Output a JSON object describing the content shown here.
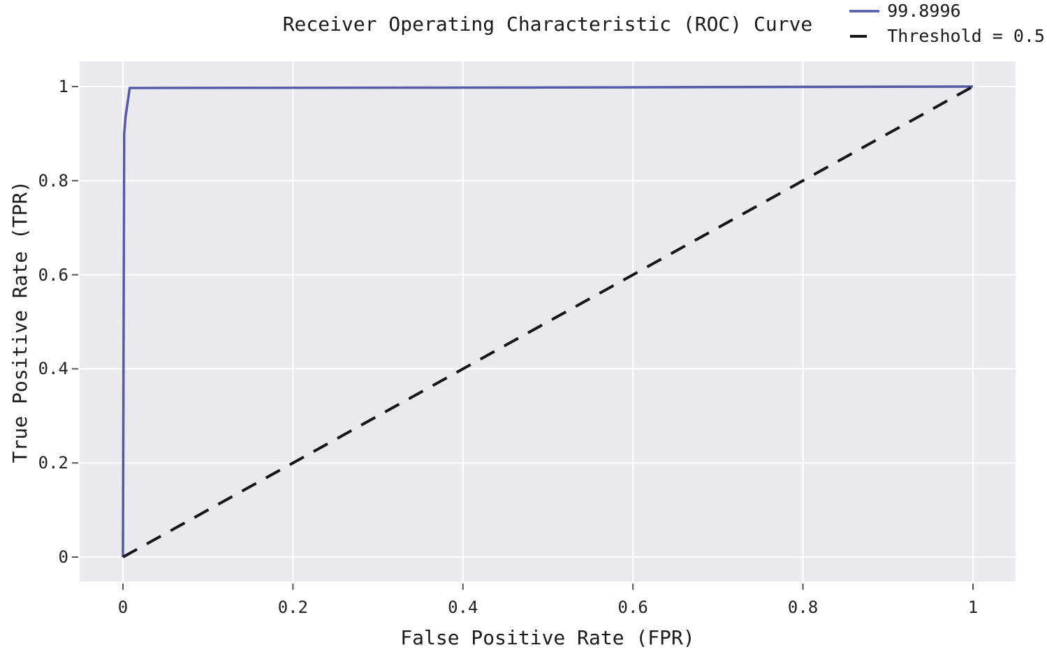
{
  "chart_data": {
    "type": "line",
    "title": "Receiver Operating Characteristic (ROC) Curve",
    "xlabel": "False Positive Rate (FPR)",
    "ylabel": "True Positive Rate (TPR)",
    "xlim": [
      -0.051,
      1.05
    ],
    "ylim": [
      -0.052,
      1.053
    ],
    "grid": true,
    "legend_position": "upper right, outside axes",
    "colors": {
      "plot_background": "#e9e9ee",
      "gridline": "#ffffff",
      "roc_line": "#5459a8",
      "threshold_line": "#161616",
      "tick_mark": "#555555",
      "text": "#1a1a1a"
    },
    "xticks": {
      "values": [
        0,
        0.2,
        0.4,
        0.6,
        0.8,
        1
      ],
      "labels": [
        "0",
        "0.2",
        "0.4",
        "0.6",
        "0.8",
        "1"
      ]
    },
    "yticks": {
      "values": [
        0,
        0.2,
        0.4,
        0.6,
        0.8,
        1
      ],
      "labels": [
        "0",
        "0.2",
        "0.4",
        "0.6",
        "0.8",
        "1"
      ]
    },
    "series": [
      {
        "name": "99.8996",
        "style": "solid",
        "color": "#5459a8",
        "line_width": 3.5,
        "points": [
          [
            0,
            0
          ],
          [
            0.0015,
            0.9
          ],
          [
            0.003,
            0.935
          ],
          [
            0.008,
            0.997
          ],
          [
            0.5,
            0.998
          ],
          [
            1,
            1
          ]
        ]
      },
      {
        "name": "Threshold = 0.5",
        "style": "dashed",
        "color": "#161616",
        "line_width": 4,
        "points": [
          [
            0,
            0
          ],
          [
            1,
            1
          ]
        ]
      }
    ]
  }
}
